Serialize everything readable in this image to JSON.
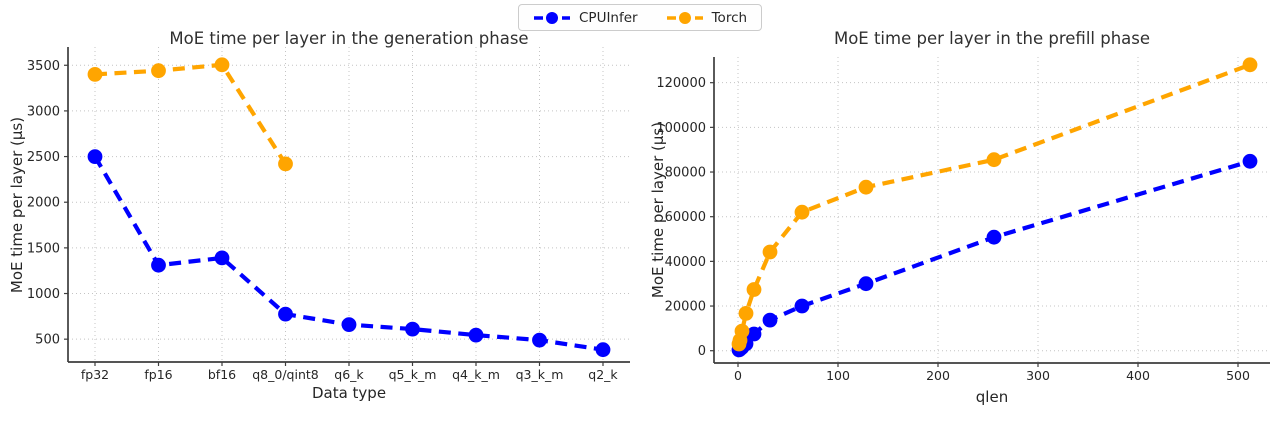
{
  "legend": {
    "items": [
      {
        "label": "CPUInfer",
        "color": "#0000ff"
      },
      {
        "label": "Torch",
        "color": "#ffa500"
      }
    ]
  },
  "colors": {
    "cpuinfer": "#0000ff",
    "torch": "#ffa500",
    "grid": "#c4c4c4",
    "spine": "#3d3d3d",
    "text": "#262626"
  },
  "chart_data": [
    {
      "id": "generation",
      "type": "line",
      "title": "MoE time per layer in the generation phase",
      "xlabel": "Data type",
      "ylabel": "MoE time per layer (μs)",
      "x_type": "categorical",
      "categories": [
        "fp32",
        "fp16",
        "bf16",
        "q8_0/qint8",
        "q6_k",
        "q5_k_m",
        "q4_k_m",
        "q3_k_m",
        "q2_k"
      ],
      "yticks": [
        500,
        1000,
        1500,
        2000,
        2500,
        3000,
        3500
      ],
      "ylim": [
        250,
        3700
      ],
      "grid": true,
      "line_style": "dashed",
      "marker": "circle",
      "legend_position": "figure-top-center",
      "series": [
        {
          "name": "CPUInfer",
          "color": "#0000ff",
          "values": [
            2500,
            1310,
            1390,
            775,
            660,
            610,
            545,
            490,
            385
          ]
        },
        {
          "name": "Torch",
          "color": "#ffa500",
          "values": [
            3400,
            3440,
            3505,
            2420,
            null,
            null,
            null,
            null,
            null
          ]
        }
      ]
    },
    {
      "id": "prefill",
      "type": "line",
      "title": "MoE time per layer in the prefill phase",
      "xlabel": "qlen",
      "ylabel": "MoE time per layer (μs)",
      "x_type": "linear",
      "x": [
        1,
        2,
        4,
        8,
        16,
        32,
        64,
        128,
        256,
        512
      ],
      "xticks": [
        0,
        100,
        200,
        300,
        400,
        500
      ],
      "xlim": [
        -24,
        532
      ],
      "yticks": [
        0,
        20000,
        40000,
        60000,
        80000,
        100000,
        120000
      ],
      "ylim": [
        -5500,
        131500
      ],
      "grid": true,
      "line_style": "dashed",
      "marker": "circle",
      "series": [
        {
          "name": "CPUInfer",
          "color": "#0000ff",
          "values": [
            350,
            700,
            1500,
            3100,
            7500,
            13700,
            20000,
            30000,
            50800,
            84800
          ]
        },
        {
          "name": "Torch",
          "color": "#ffa500",
          "values": [
            3000,
            4600,
            8800,
            16700,
            27400,
            44200,
            62000,
            73200,
            85500,
            128000
          ]
        }
      ]
    }
  ]
}
